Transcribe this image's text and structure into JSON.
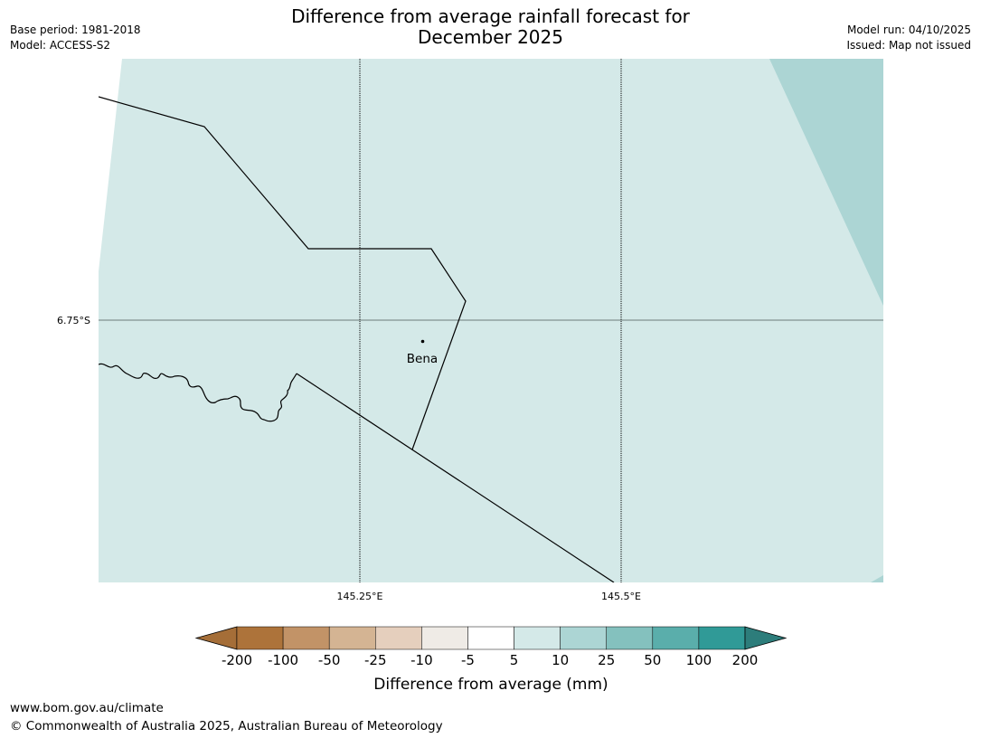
{
  "header": {
    "title_line1": "Difference from average rainfall forecast for",
    "title_line2": "December 2025",
    "base_period": "Base period: 1981-2018",
    "model": "Model: ACCESS-S2",
    "model_run": "Model run: 04/10/2025",
    "issued": "Issued: Map not issued"
  },
  "map": {
    "lat_label": "6.75°S",
    "lon_labels": [
      "145.25°E",
      "145.5°E"
    ],
    "place_label": "Bena",
    "fill_colors": {
      "main": "#d4e9e8",
      "upper_category": "#acd5d4"
    }
  },
  "legend": {
    "title": "Difference from average (mm)",
    "tick_labels": [
      "-200",
      "-100",
      "-50",
      "-25",
      "-10",
      "-5",
      "5",
      "10",
      "25",
      "50",
      "100",
      "200"
    ],
    "colors": [
      "#a56e38",
      "#ad733a",
      "#c29367",
      "#d4b493",
      "#e5cfbd",
      "#efebe6",
      "#ffffff",
      "#d4e9e8",
      "#acd5d4",
      "#84c1be",
      "#5aaeab",
      "#309a97",
      "#2d7d7b"
    ]
  },
  "footer": {
    "url": "www.bom.gov.au/climate",
    "copyright": "© Commonwealth of Australia 2025, Australian Bureau of Meteorology"
  }
}
